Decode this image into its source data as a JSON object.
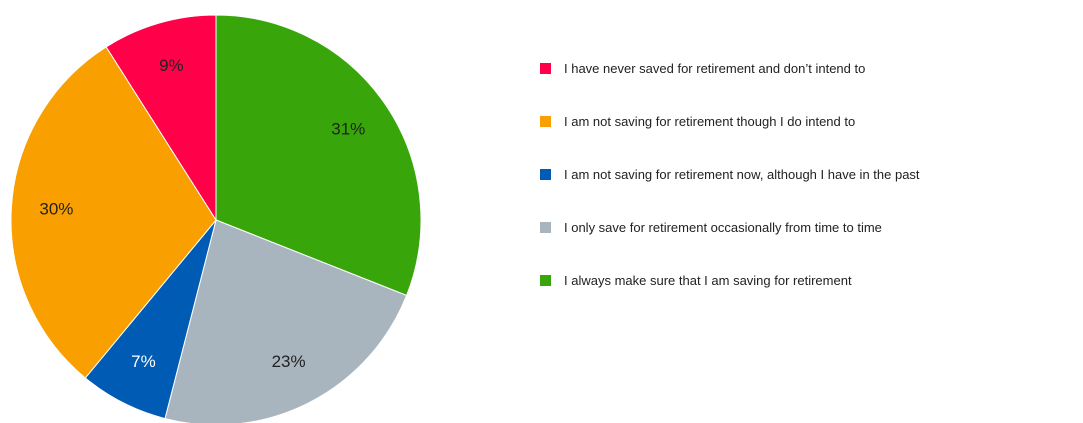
{
  "chart_data": {
    "type": "pie",
    "title": "",
    "slices": [
      {
        "label": "I always make sure that I am saving for retirement",
        "value": 31,
        "display": "31%",
        "color": "#38a60a"
      },
      {
        "label": "I only save for retirement occasionally from time to time",
        "value": 23,
        "display": "23%",
        "color": "#a9b5be"
      },
      {
        "label": "I am not saving for retirement now, although I have in the past",
        "value": 7,
        "display": "7%",
        "color": "#005bb5"
      },
      {
        "label": "I am not saving for retirement though I do intend to",
        "value": 30,
        "display": "30%",
        "color": "#f99f00"
      },
      {
        "label": "I have never saved for retirement and don’t intend to",
        "value": 9,
        "display": "9%",
        "color": "#ff0049"
      }
    ],
    "legend": {
      "position": "right",
      "items": [
        {
          "label": "I have never saved for retirement and don’t intend to",
          "color": "#ff0049"
        },
        {
          "label": "I am not saving for retirement though I do intend to",
          "color": "#f99f00"
        },
        {
          "label": "I am not saving for retirement now, although I have in the past",
          "color": "#005bb5"
        },
        {
          "label": "I only save for retirement occasionally from time to time",
          "color": "#a9b5be"
        },
        {
          "label": "I always make sure that I am saving for retirement",
          "color": "#38a60a"
        }
      ]
    }
  }
}
